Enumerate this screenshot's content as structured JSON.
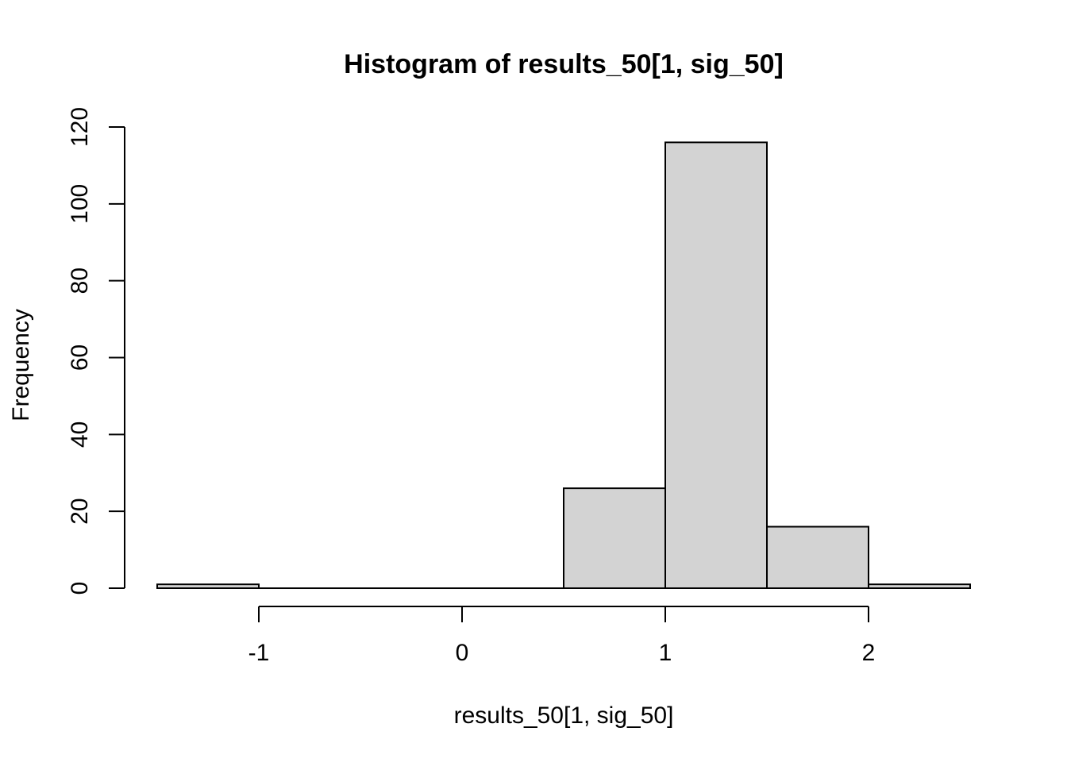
{
  "chart_data": {
    "type": "bar",
    "title": "Histogram of results_50[1, sig_50]",
    "xlabel": "results_50[1, sig_50]",
    "ylabel": "Frequency",
    "bins": [
      {
        "from": -1.5,
        "to": -1.0,
        "count": 1
      },
      {
        "from": -1.0,
        "to": -0.5,
        "count": 0
      },
      {
        "from": -0.5,
        "to": 0.0,
        "count": 0
      },
      {
        "from": 0.0,
        "to": 0.5,
        "count": 0
      },
      {
        "from": 0.5,
        "to": 1.0,
        "count": 26
      },
      {
        "from": 1.0,
        "to": 1.5,
        "count": 116
      },
      {
        "from": 1.5,
        "to": 2.0,
        "count": 16
      },
      {
        "from": 2.0,
        "to": 2.5,
        "count": 1
      }
    ],
    "xlim": [
      -1.5,
      2.5
    ],
    "ylim": [
      0,
      120
    ],
    "x_ticks": [
      -1,
      0,
      1,
      2
    ],
    "y_ticks": [
      0,
      20,
      40,
      60,
      80,
      100,
      120
    ],
    "grid": false,
    "bar_fill": "#d3d3d3",
    "bar_stroke": "#000000"
  }
}
